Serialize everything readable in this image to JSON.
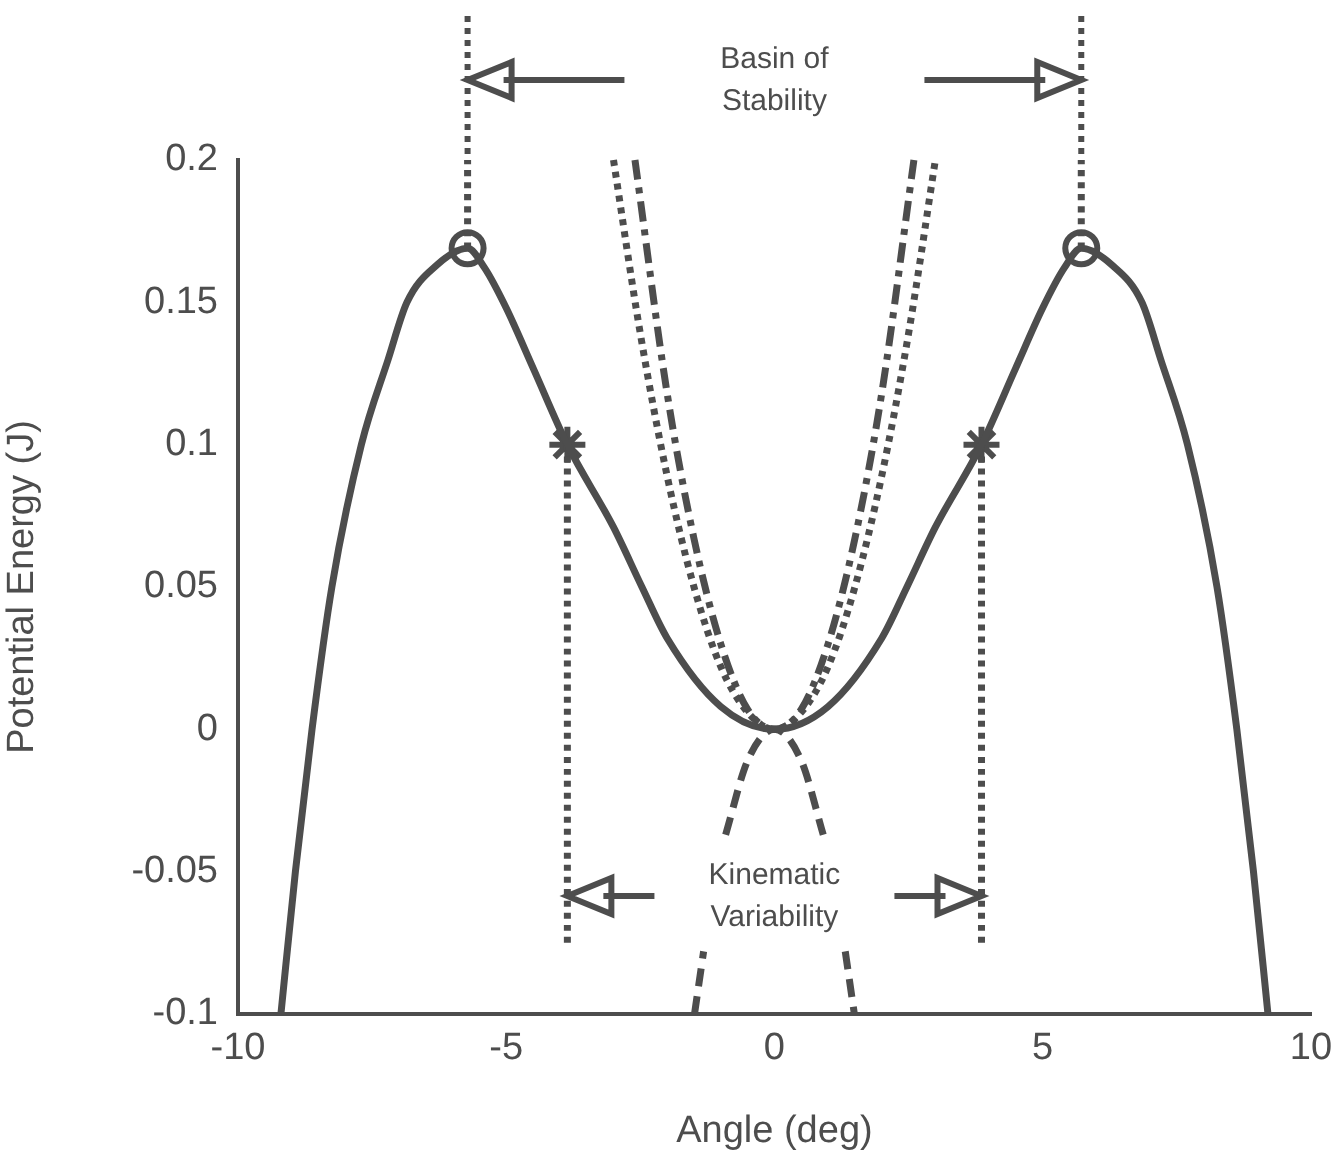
{
  "chart_data": {
    "type": "line",
    "xlabel": "Angle (deg)",
    "ylabel": "Potential Energy (J)",
    "xlim": [
      -10,
      10
    ],
    "ylim": [
      -0.1,
      0.2
    ],
    "xticks": [
      -10,
      -5,
      0,
      5,
      10
    ],
    "yticks": [
      -0.1,
      -0.05,
      0,
      0.05,
      0.1,
      0.15,
      0.2
    ],
    "grid": false,
    "legend": false,
    "annotations": [
      "Basin of Stability",
      "Kinematic Variability"
    ],
    "series": [
      {
        "color": "#4d4d4d",
        "line_style": "solid",
        "marker": "none",
        "x": [
          -9.2,
          -8.93,
          -8.62,
          -8.25,
          -7.7,
          -7.2,
          -6.85,
          -6.3,
          -5.72,
          -5.4,
          -5,
          -4.5,
          -3.86,
          -3,
          -2.47,
          -2,
          -1,
          0,
          1,
          2,
          2.47,
          3,
          3.86,
          4.5,
          5,
          5.4,
          5.72,
          6.3,
          6.85,
          7.2,
          7.7,
          8.25,
          8.62,
          8.93,
          9.2
        ],
        "values": [
          -0.1,
          -0.05,
          0,
          0.05,
          0.1,
          0.13,
          0.15,
          0.163,
          0.169,
          0.162,
          0.148,
          0.127,
          0.1,
          0.071,
          0.05,
          0.032,
          0.008,
          0,
          0.008,
          0.032,
          0.05,
          0.071,
          0.1,
          0.127,
          0.148,
          0.162,
          0.169,
          0.163,
          0.15,
          0.13,
          0.1,
          0.05,
          0,
          -0.05,
          -0.1
        ]
      },
      {
        "color": "#4d4d4d",
        "line_style": "dotted",
        "marker": "none",
        "x": [
          -3,
          -2.5,
          -2,
          -1.5,
          -1,
          -0.5,
          0,
          0.5,
          1,
          1.5,
          2,
          2.5,
          3
        ],
        "values": [
          0.2,
          0.139,
          0.089,
          0.05,
          0.022,
          0.006,
          0,
          0.006,
          0.022,
          0.05,
          0.089,
          0.139,
          0.2
        ]
      },
      {
        "color": "#4d4d4d",
        "line_style": "dashdot",
        "marker": "none",
        "x": [
          -2.6,
          -2,
          -1.5,
          -1,
          -0.5,
          0,
          0.5,
          1,
          1.5,
          2,
          2.6
        ],
        "values": [
          0.2,
          0.118,
          0.067,
          0.03,
          0.007,
          0,
          0.007,
          0.03,
          0.067,
          0.118,
          0.2
        ]
      },
      {
        "color": "#4d4d4d",
        "line_style": "dashed",
        "marker": "none",
        "x": [
          -1.49,
          -1.32,
          -1.1,
          -0.91,
          -0.5,
          0,
          0.5,
          0.91,
          1.1,
          1.32,
          1.49
        ],
        "values": [
          -0.1,
          -0.078,
          null,
          -0.037,
          -0.011,
          0,
          -0.011,
          -0.037,
          null,
          -0.078,
          -0.1
        ]
      },
      {
        "color": "#4d4d4d",
        "line_style": "dotted",
        "marker": "none",
        "x": [
          -5.72,
          -5.72
        ],
        "values": [
          0.169,
          0.2
        ]
      },
      {
        "color": "#4d4d4d",
        "line_style": "dotted",
        "marker": "none",
        "x": [
          5.72,
          5.72
        ],
        "values": [
          0.169,
          0.2
        ]
      },
      {
        "color": "#4d4d4d",
        "line_style": "dotted",
        "marker": "none",
        "x": [
          -3.86,
          -3.86
        ],
        "values": [
          0.1,
          -0.075
        ]
      },
      {
        "color": "#4d4d4d",
        "line_style": "dotted",
        "marker": "none",
        "x": [
          3.86,
          3.86
        ],
        "values": [
          0.1,
          -0.075
        ]
      },
      {
        "type": "scatter",
        "color": "#4d4d4d",
        "marker": "circle",
        "x": [
          -5.72,
          5.72
        ],
        "values": [
          0.169,
          0.169
        ]
      },
      {
        "type": "scatter",
        "color": "#4d4d4d",
        "marker": "cross",
        "x": [
          -3.86,
          3.86
        ],
        "values": [
          0.1,
          0.1
        ]
      }
    ]
  }
}
